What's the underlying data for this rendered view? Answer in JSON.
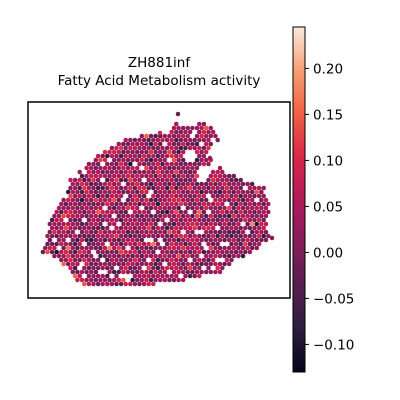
{
  "chart_data": {
    "type": "scatter",
    "title": "ZH881inf",
    "subtitle": "Fatty Acid Metabolism activity",
    "colormap": "rocket",
    "colorbar": {
      "range": [
        -0.13,
        0.245
      ],
      "ticks": [
        -0.1,
        -0.05,
        0.0,
        0.05,
        0.1,
        0.15,
        0.2
      ],
      "tick_labels": [
        "−0.10",
        "−0.05",
        "0.00",
        "0.05",
        "0.10",
        "0.15",
        "0.20"
      ]
    },
    "value_distribution": {
      "center": 0.03,
      "spread": 0.045
    },
    "frame": "box",
    "grid": false
  }
}
